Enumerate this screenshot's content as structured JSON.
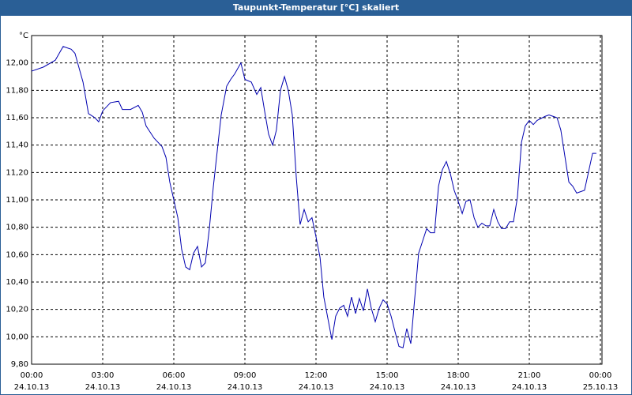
{
  "chart_data": {
    "type": "line",
    "title": "Taupunkt-Temperatur [°C] skaliert",
    "y_label": "°C",
    "x": [
      0,
      0.5,
      1,
      1.33,
      1.67,
      1.83,
      2.17,
      2.4,
      2.67,
      2.83,
      3,
      3.33,
      3.67,
      3.83,
      4.17,
      4.5,
      4.67,
      4.83,
      5.17,
      5.5,
      5.67,
      5.83,
      6.17,
      6.33,
      6.5,
      6.67,
      6.83,
      7,
      7.17,
      7.33,
      7.5,
      7.67,
      8,
      8.23,
      8.4,
      8.57,
      8.83,
      9,
      9.27,
      9.5,
      9.67,
      9.83,
      10,
      10.17,
      10.33,
      10.5,
      10.67,
      10.83,
      11,
      11.17,
      11.33,
      11.5,
      11.67,
      11.83,
      12,
      12.17,
      12.33,
      12.67,
      12.83,
      13,
      13.17,
      13.33,
      13.5,
      13.67,
      13.83,
      14,
      14.17,
      14.33,
      14.5,
      14.67,
      14.83,
      15,
      15.17,
      15.33,
      15.5,
      15.67,
      15.83,
      16,
      16.17,
      16.33,
      16.5,
      16.67,
      16.83,
      17,
      17.17,
      17.33,
      17.5,
      17.67,
      17.83,
      18,
      18.17,
      18.33,
      18.5,
      18.67,
      18.83,
      19,
      19.17,
      19.33,
      19.5,
      19.67,
      19.83,
      20,
      20.17,
      20.33,
      20.5,
      20.67,
      20.83,
      21,
      21.17,
      21.33,
      21.67,
      21.83,
      22,
      22.17,
      22.33,
      22.67,
      22.83,
      23,
      23.33,
      23.67,
      23.83
    ],
    "series": [
      {
        "name": "Taupunkt",
        "color": "#0000b0",
        "values": [
          11.94,
          11.97,
          12.02,
          12.12,
          12.1,
          12.07,
          11.86,
          11.63,
          11.6,
          11.57,
          11.65,
          11.71,
          11.72,
          11.66,
          11.66,
          11.69,
          11.64,
          11.54,
          11.45,
          11.39,
          11.31,
          11.13,
          10.87,
          10.64,
          10.51,
          10.49,
          10.61,
          10.66,
          10.51,
          10.54,
          10.79,
          11.1,
          11.62,
          11.83,
          11.88,
          11.92,
          12.0,
          11.88,
          11.86,
          11.77,
          11.82,
          11.65,
          11.48,
          11.4,
          11.51,
          11.8,
          11.9,
          11.8,
          11.62,
          11.16,
          10.82,
          10.93,
          10.84,
          10.87,
          10.73,
          10.58,
          10.29,
          9.98,
          10.15,
          10.21,
          10.23,
          10.15,
          10.29,
          10.17,
          10.28,
          10.19,
          10.35,
          10.21,
          10.11,
          10.21,
          10.27,
          10.24,
          10.15,
          10.04,
          9.93,
          9.92,
          10.06,
          9.95,
          10.29,
          10.61,
          10.7,
          10.79,
          10.76,
          10.76,
          11.1,
          11.22,
          11.28,
          11.19,
          11.07,
          10.99,
          10.9,
          10.99,
          11.0,
          10.87,
          10.8,
          10.83,
          10.81,
          10.81,
          10.93,
          10.84,
          10.79,
          10.79,
          10.84,
          10.84,
          11.02,
          11.42,
          11.54,
          11.58,
          11.55,
          11.58,
          11.61,
          11.62,
          11.61,
          11.6,
          11.51,
          11.13,
          11.1,
          11.05,
          11.07,
          11.34,
          11.34
        ]
      }
    ],
    "xlim": [
      0,
      24
    ],
    "xticks": [
      {
        "value": 0,
        "label": "00:00",
        "date": "24.10.13"
      },
      {
        "value": 3,
        "label": "03:00",
        "date": "24.10.13"
      },
      {
        "value": 6,
        "label": "06:00",
        "date": "24.10.13"
      },
      {
        "value": 9,
        "label": "09:00",
        "date": "24.10.13"
      },
      {
        "value": 12,
        "label": "12:00",
        "date": "24.10.13"
      },
      {
        "value": 15,
        "label": "15:00",
        "date": "24.10.13"
      },
      {
        "value": 18,
        "label": "18:00",
        "date": "24.10.13"
      },
      {
        "value": 21,
        "label": "21:00",
        "date": "24.10.13"
      },
      {
        "value": 24,
        "label": "00:00",
        "date": "25.10.13"
      }
    ],
    "ylim": [
      9.8,
      12.2
    ],
    "yticks": [
      {
        "value": 9.8,
        "label": "9,80"
      },
      {
        "value": 10,
        "label": "10,00"
      },
      {
        "value": 10.2,
        "label": "10,20"
      },
      {
        "value": 10.4,
        "label": "10,40"
      },
      {
        "value": 10.6,
        "label": "10,60"
      },
      {
        "value": 10.8,
        "label": "10,80"
      },
      {
        "value": 11,
        "label": "11,00"
      },
      {
        "value": 11.2,
        "label": "11,20"
      },
      {
        "value": 11.4,
        "label": "11,40"
      },
      {
        "value": 11.6,
        "label": "11,60"
      },
      {
        "value": 11.8,
        "label": "11,80"
      },
      {
        "value": 12,
        "label": "12,00"
      }
    ],
    "grid": true
  }
}
